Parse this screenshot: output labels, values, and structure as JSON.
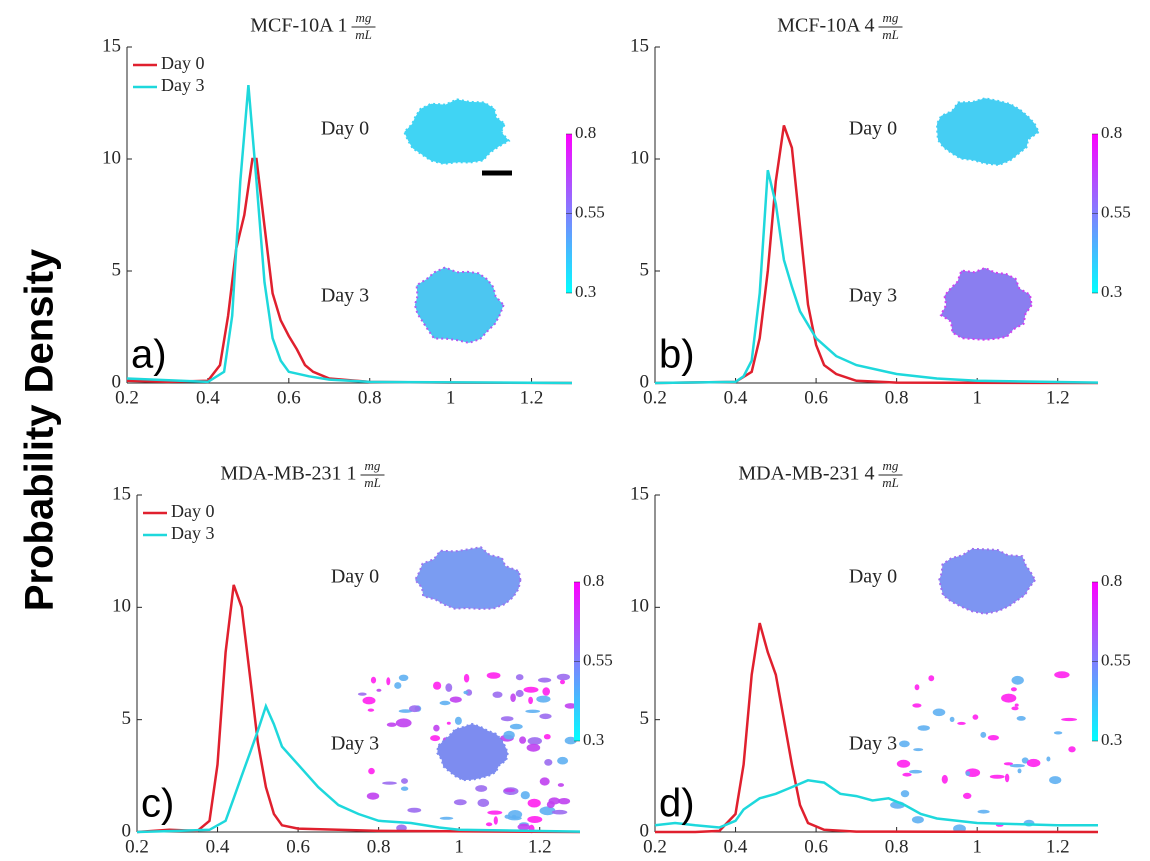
{
  "chart_data": [
    {
      "type": "line",
      "title": "MCF-10A 1",
      "title_frac": [
        "mg",
        "mL"
      ],
      "label": "a)",
      "ylabel": "Probability Density",
      "xlim": [
        0.2,
        1.3
      ],
      "xticks": [
        0.2,
        0.4,
        0.6,
        0.8,
        1,
        1.2
      ],
      "ylim": [
        0,
        15
      ],
      "yticks": [
        0,
        5,
        10,
        15
      ],
      "legend": "upper left",
      "annotations": [
        "Day 0",
        "Day 3"
      ],
      "colorbar": {
        "lim": [
          0.3,
          0.8
        ],
        "ticks": [
          0.3,
          0.55,
          0.8
        ],
        "colors": [
          "#00ffff",
          "#ff00ff"
        ]
      },
      "series": [
        {
          "name": "Day 0",
          "color": "#e0202e",
          "x": [
            0.2,
            0.3,
            0.4,
            0.43,
            0.45,
            0.47,
            0.49,
            0.51,
            0.52,
            0.54,
            0.56,
            0.58,
            0.6,
            0.62,
            0.64,
            0.66,
            0.7,
            0.8,
            1.0,
            1.3
          ],
          "values": [
            0.1,
            0.05,
            0.1,
            0.8,
            3,
            6,
            7.5,
            10,
            10,
            7,
            4,
            2.8,
            2.1,
            1.5,
            0.8,
            0.5,
            0.2,
            0.05,
            0.02,
            0
          ]
        },
        {
          "name": "Day 3",
          "color": "#1ed8dc",
          "x": [
            0.2,
            0.4,
            0.44,
            0.46,
            0.48,
            0.5,
            0.52,
            0.54,
            0.56,
            0.58,
            0.6,
            0.65,
            0.7,
            0.8,
            1.3
          ],
          "values": [
            0.2,
            0.05,
            0.5,
            3,
            9,
            13.3,
            9,
            4.5,
            2,
            1,
            0.5,
            0.3,
            0.15,
            0.05,
            0
          ]
        }
      ]
    },
    {
      "type": "line",
      "title": "MCF-10A 4",
      "title_frac": [
        "mg",
        "mL"
      ],
      "label": "b)",
      "xlim": [
        0.2,
        1.3
      ],
      "xticks": [
        0.2,
        0.4,
        0.6,
        0.8,
        1,
        1.2
      ],
      "ylim": [
        0,
        15
      ],
      "yticks": [
        0,
        5,
        10,
        15
      ],
      "annotations": [
        "Day 0",
        "Day 3"
      ],
      "colorbar": {
        "lim": [
          0.3,
          0.8
        ],
        "ticks": [
          0.3,
          0.55,
          0.8
        ],
        "colors": [
          "#00ffff",
          "#ff00ff"
        ]
      },
      "series": [
        {
          "color": "#e0202e",
          "x": [
            0.2,
            0.4,
            0.44,
            0.46,
            0.48,
            0.5,
            0.52,
            0.54,
            0.56,
            0.58,
            0.6,
            0.62,
            0.65,
            0.7,
            0.8,
            1.3
          ],
          "values": [
            0,
            0.05,
            0.5,
            2,
            5,
            9,
            11.5,
            10.5,
            7,
            3.5,
            1.7,
            0.8,
            0.4,
            0.1,
            0.02,
            0
          ]
        },
        {
          "color": "#1ed8dc",
          "x": [
            0.2,
            0.4,
            0.42,
            0.44,
            0.46,
            0.48,
            0.5,
            0.52,
            0.54,
            0.56,
            0.6,
            0.65,
            0.7,
            0.8,
            0.9,
            1.0,
            1.3
          ],
          "values": [
            0,
            0.05,
            0.3,
            1,
            4,
            9.5,
            8,
            5.5,
            4.3,
            3.2,
            2,
            1.2,
            0.8,
            0.4,
            0.2,
            0.1,
            0.02
          ]
        }
      ]
    },
    {
      "type": "line",
      "title": "MDA-MB-231 1",
      "title_frac": [
        "mg",
        "mL"
      ],
      "label": "c)",
      "xlim": [
        0.2,
        1.3
      ],
      "xticks": [
        0.2,
        0.4,
        0.6,
        0.8,
        1,
        1.2
      ],
      "ylim": [
        0,
        15
      ],
      "yticks": [
        0,
        5,
        10,
        15
      ],
      "legend": "upper left",
      "annotations": [
        "Day 0",
        "Day 3"
      ],
      "colorbar": {
        "lim": [
          0.3,
          0.8
        ],
        "ticks": [
          0.3,
          0.55,
          0.8
        ],
        "colors": [
          "#00ffff",
          "#ff00ff"
        ]
      },
      "series": [
        {
          "name": "Day 0",
          "color": "#e0202e",
          "x": [
            0.2,
            0.28,
            0.35,
            0.38,
            0.4,
            0.42,
            0.44,
            0.46,
            0.48,
            0.5,
            0.52,
            0.54,
            0.56,
            0.6,
            0.7,
            0.8,
            1.3
          ],
          "values": [
            0,
            0.1,
            0.05,
            0.5,
            3,
            8,
            11,
            10,
            7,
            4,
            2,
            0.8,
            0.3,
            0.15,
            0.1,
            0.05,
            0
          ]
        },
        {
          "name": "Day 3",
          "color": "#1ed8dc",
          "x": [
            0.2,
            0.3,
            0.38,
            0.42,
            0.44,
            0.46,
            0.48,
            0.5,
            0.52,
            0.54,
            0.56,
            0.6,
            0.65,
            0.7,
            0.75,
            0.8,
            0.88,
            0.95,
            1.0,
            1.3
          ],
          "values": [
            0,
            0.05,
            0.1,
            0.5,
            1.5,
            2.5,
            3.5,
            4.5,
            5.6,
            4.8,
            3.8,
            3,
            2,
            1.2,
            0.8,
            0.5,
            0.4,
            0.2,
            0.1,
            0.02
          ]
        }
      ]
    },
    {
      "type": "line",
      "title": "MDA-MB-231 4",
      "title_frac": [
        "mg",
        "mL"
      ],
      "label": "d)",
      "xlim": [
        0.2,
        1.3
      ],
      "xticks": [
        0.2,
        0.4,
        0.6,
        0.8,
        1,
        1.2
      ],
      "ylim": [
        0,
        15
      ],
      "yticks": [
        0,
        5,
        10,
        15
      ],
      "annotations": [
        "Day 0",
        "Day 3"
      ],
      "colorbar": {
        "lim": [
          0.3,
          0.8
        ],
        "ticks": [
          0.3,
          0.55,
          0.8
        ],
        "colors": [
          "#00ffff",
          "#ff00ff"
        ]
      },
      "series": [
        {
          "color": "#e0202e",
          "x": [
            0.2,
            0.3,
            0.36,
            0.4,
            0.42,
            0.44,
            0.46,
            0.48,
            0.5,
            0.52,
            0.54,
            0.56,
            0.58,
            0.62,
            0.7,
            1.3
          ],
          "values": [
            0,
            0,
            0.05,
            0.8,
            3,
            7,
            9.3,
            8,
            7,
            5,
            3,
            1.2,
            0.4,
            0.1,
            0.02,
            0
          ]
        },
        {
          "color": "#1ed8dc",
          "x": [
            0.2,
            0.25,
            0.3,
            0.36,
            0.4,
            0.42,
            0.46,
            0.5,
            0.54,
            0.58,
            0.62,
            0.66,
            0.7,
            0.74,
            0.78,
            0.82,
            0.86,
            0.9,
            0.95,
            1.0,
            1.1,
            1.2,
            1.3
          ],
          "values": [
            0.3,
            0.4,
            0.3,
            0.2,
            0.5,
            1,
            1.5,
            1.7,
            2,
            2.3,
            2.2,
            1.7,
            1.6,
            1.4,
            1.5,
            1.2,
            0.8,
            0.6,
            0.5,
            0.4,
            0.35,
            0.3,
            0.3
          ]
        }
      ]
    }
  ]
}
